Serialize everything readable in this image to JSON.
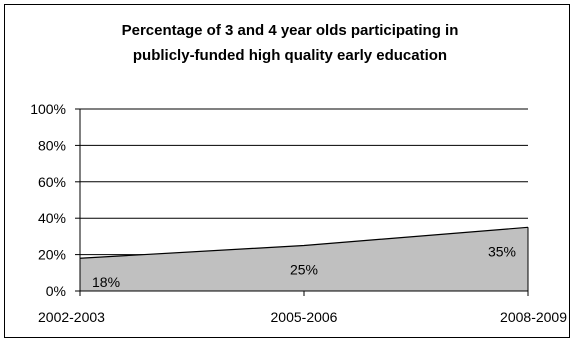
{
  "chart_data": {
    "type": "area",
    "title": "Percentage of 3 and 4 year olds participating in publicly-funded high quality early education",
    "title_lines": [
      "Percentage of 3 and 4 year olds participating in",
      "publicly-funded high quality early education"
    ],
    "categories": [
      "2002-2003",
      "2005-2006",
      "2008-2009"
    ],
    "values": [
      18,
      25,
      35
    ],
    "data_labels": [
      "18%",
      "25%",
      "35%"
    ],
    "y_ticks": [
      "0%",
      "20%",
      "40%",
      "60%",
      "80%",
      "100%"
    ],
    "ylim": [
      0,
      100
    ],
    "y_step": 20,
    "xlabel": "",
    "ylabel": "",
    "grid": true,
    "legend": "none",
    "colors": {
      "area_fill": "#c0c0c0",
      "line": "#000000",
      "grid": "#000000"
    }
  }
}
